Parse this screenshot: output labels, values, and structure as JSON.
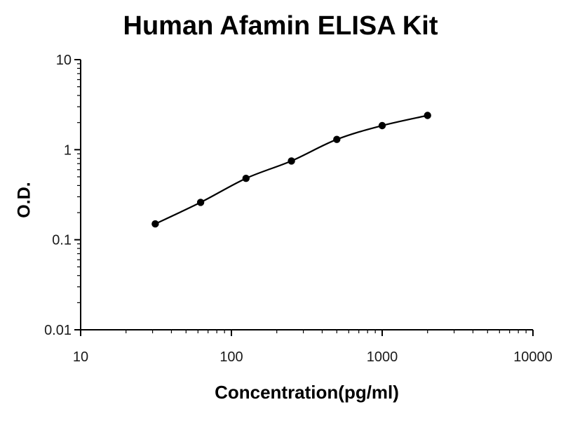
{
  "title": "Human Afamin ELISA Kit",
  "chart_data": {
    "type": "line",
    "title": "Human Afamin ELISA Kit",
    "xlabel": "Concentration(pg/ml)",
    "ylabel": "O.D.",
    "xscale": "log",
    "yscale": "log",
    "xlim": [
      10,
      10000
    ],
    "ylim": [
      0.01,
      10
    ],
    "x_ticks": [
      10,
      100,
      1000,
      10000
    ],
    "x_tick_labels": [
      "10",
      "100",
      "1000",
      "10000"
    ],
    "y_ticks": [
      0.01,
      0.1,
      1,
      10
    ],
    "y_tick_labels": [
      "0.01",
      "0.1",
      "1",
      "10"
    ],
    "x": [
      31.25,
      62.5,
      125,
      250,
      500,
      1000,
      2000
    ],
    "y": [
      0.15,
      0.26,
      0.48,
      0.75,
      1.3,
      1.85,
      2.4
    ],
    "grid": false,
    "legend": false,
    "line_color": "#000000",
    "marker_color": "#000000",
    "axis_color": "#000000",
    "background_color": "#ffffff"
  }
}
